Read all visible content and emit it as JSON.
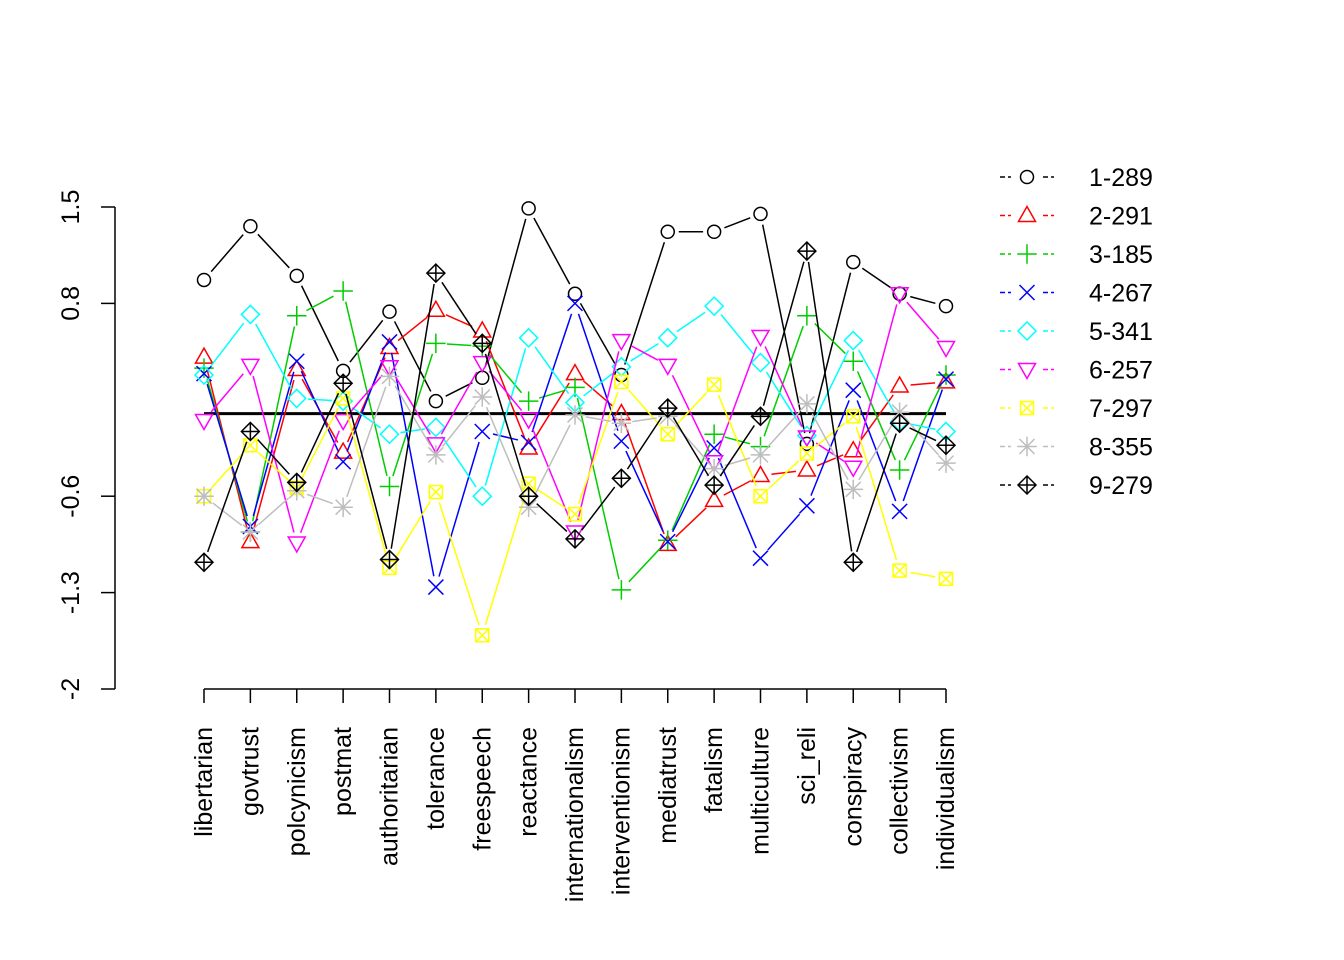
{
  "chart_data": {
    "type": "line",
    "title": "",
    "xlabel": "",
    "ylabel": "",
    "ylim": [
      -2,
      1.5
    ],
    "y_ticks": [
      {
        "value": 1.5,
        "label": "1.5"
      },
      {
        "value": 0.8,
        "label": "0.8"
      },
      {
        "value": -0.6,
        "label": "-0.6"
      },
      {
        "value": -1.3,
        "label": "-1.3"
      },
      {
        "value": -2,
        "label": "-2"
      }
    ],
    "categories": [
      "libertarian",
      "govtrust",
      "polcynicism",
      "postmat",
      "authoritarian",
      "tolerance",
      "freespeech",
      "reactance",
      "internationalism",
      "interventionism",
      "mediatrust",
      "fatalism",
      "multiculture",
      "sci_reli",
      "conspiracy",
      "collectivism",
      "individualism"
    ],
    "grid": false,
    "legend_position": "top-right",
    "reference_line": 0,
    "series": [
      {
        "name": "1-289",
        "color": "#000000",
        "marker": "circle",
        "values": [
          0.97,
          1.36,
          1.0,
          0.31,
          0.74,
          0.09,
          0.26,
          1.49,
          0.87,
          0.28,
          1.32,
          1.32,
          1.45,
          -0.22,
          1.1,
          0.87,
          0.78
        ]
      },
      {
        "name": "2-291",
        "color": "#ff0000",
        "marker": "triangle-up",
        "values": [
          0.41,
          -0.93,
          0.32,
          -0.28,
          0.48,
          0.75,
          0.6,
          -0.25,
          0.29,
          0.0,
          -0.95,
          -0.63,
          -0.45,
          -0.41,
          -0.27,
          0.2,
          0.23
        ]
      },
      {
        "name": "3-185",
        "color": "#00cd00",
        "marker": "plus",
        "values": [
          0.33,
          -0.86,
          0.71,
          0.89,
          -0.53,
          0.51,
          0.49,
          0.09,
          0.19,
          -1.28,
          -0.92,
          -0.15,
          -0.24,
          0.71,
          0.38,
          -0.41,
          0.28
        ]
      },
      {
        "name": "4-267",
        "color": "#0000ff",
        "marker": "cross",
        "values": [
          0.29,
          -0.82,
          0.38,
          -0.35,
          0.52,
          -1.26,
          -0.13,
          -0.21,
          0.8,
          -0.2,
          -0.93,
          -0.25,
          -1.05,
          -0.67,
          0.17,
          -0.71,
          0.25
        ]
      },
      {
        "name": "5-341",
        "color": "#00ffff",
        "marker": "diamond",
        "values": [
          0.28,
          0.72,
          0.11,
          0.09,
          -0.15,
          -0.1,
          -0.6,
          0.55,
          0.08,
          0.34,
          0.55,
          0.78,
          0.37,
          -0.16,
          0.53,
          -0.06,
          -0.13
        ]
      },
      {
        "name": "6-257",
        "color": "#ff00ff",
        "marker": "triangle-down",
        "values": [
          -0.05,
          0.35,
          -0.94,
          -0.05,
          0.34,
          -0.22,
          0.37,
          -0.04,
          -0.86,
          0.53,
          0.35,
          -0.35,
          0.56,
          -0.17,
          -0.39,
          0.87,
          0.48
        ]
      },
      {
        "name": "7-297",
        "color": "#ffff00",
        "marker": "box-x",
        "values": [
          -0.6,
          -0.23,
          -0.54,
          0.11,
          -1.12,
          -0.57,
          -1.61,
          -0.51,
          -0.73,
          0.23,
          -0.15,
          0.21,
          -0.6,
          -0.29,
          -0.02,
          -1.14,
          -1.2
        ]
      },
      {
        "name": "8-355",
        "color": "#bebebe",
        "marker": "asterisk",
        "values": [
          -0.6,
          -0.86,
          -0.56,
          -0.68,
          0.27,
          -0.3,
          0.12,
          -0.68,
          -0.01,
          -0.07,
          -0.02,
          -0.4,
          -0.3,
          0.07,
          -0.55,
          0.01,
          -0.36
        ]
      },
      {
        "name": "9-279",
        "color": "#000000",
        "marker": "diamond-plus",
        "values": [
          -1.08,
          -0.13,
          -0.5,
          0.22,
          -1.06,
          1.02,
          0.51,
          -0.6,
          -0.91,
          -0.47,
          0.04,
          -0.52,
          -0.02,
          1.18,
          -1.08,
          -0.07,
          -0.23
        ]
      }
    ]
  }
}
